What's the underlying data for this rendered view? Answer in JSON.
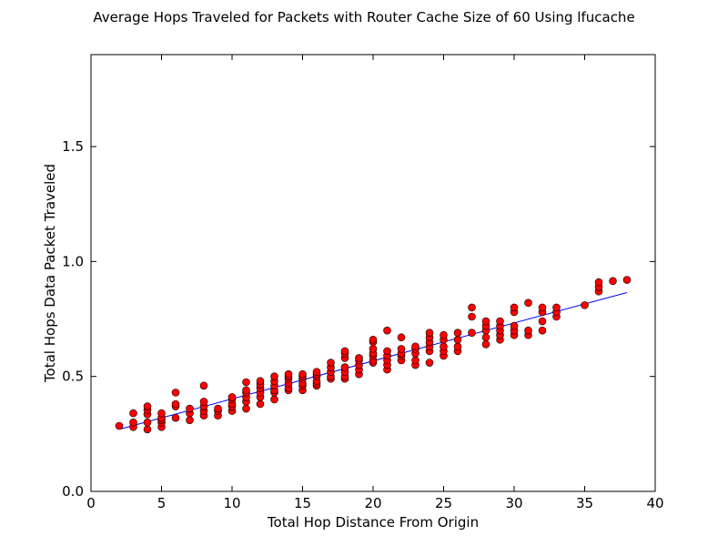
{
  "chart_data": {
    "type": "scatter",
    "title": "Average Hops Traveled for Packets with Router Cache Size of 60 Using lfucache",
    "xlabel": "Total Hop Distance From Origin",
    "ylabel": "Total Hops Data Packet Traveled",
    "xlim": [
      0,
      40
    ],
    "ylim": [
      0.0,
      1.9
    ],
    "xticks": [
      "0",
      "5",
      "10",
      "15",
      "20",
      "25",
      "30",
      "35",
      "40"
    ],
    "yticks": [
      "0.0",
      "0.5",
      "1.0",
      "1.5"
    ],
    "grid": false,
    "colors": {
      "points": "#ff0000",
      "point_edge": "#000000",
      "fit_line": "#0000ff"
    },
    "fit_line": {
      "x": [
        2,
        38
      ],
      "y": [
        0.27,
        0.865
      ]
    },
    "points": {
      "x": [
        2,
        3,
        3,
        3,
        4,
        4,
        4,
        4,
        4,
        5,
        5,
        5,
        5,
        5,
        6,
        6,
        6,
        6,
        7,
        7,
        7,
        8,
        8,
        8,
        8,
        8,
        9,
        9,
        9,
        10,
        10,
        10,
        10,
        10,
        11,
        11,
        11,
        11,
        11,
        11,
        12,
        12,
        12,
        12,
        12,
        12,
        13,
        13,
        13,
        13,
        13,
        13,
        14,
        14,
        14,
        14,
        14,
        14,
        15,
        15,
        15,
        15,
        15,
        15,
        16,
        16,
        16,
        16,
        16,
        16,
        17,
        17,
        17,
        17,
        17,
        18,
        18,
        18,
        18,
        18,
        18,
        18,
        19,
        19,
        19,
        19,
        19,
        20,
        20,
        20,
        20,
        20,
        20,
        20,
        21,
        21,
        21,
        21,
        21,
        21,
        22,
        22,
        22,
        22,
        22,
        23,
        23,
        23,
        23,
        23,
        24,
        24,
        24,
        24,
        24,
        24,
        25,
        25,
        25,
        25,
        25,
        26,
        26,
        26,
        26,
        27,
        27,
        27,
        28,
        28,
        28,
        28,
        28,
        29,
        29,
        29,
        29,
        29,
        30,
        30,
        30,
        30,
        30,
        31,
        31,
        31,
        32,
        32,
        32,
        32,
        33,
        33,
        33,
        35,
        36,
        36,
        36,
        37,
        38
      ],
      "y": [
        0.285,
        0.28,
        0.3,
        0.34,
        0.27,
        0.3,
        0.335,
        0.355,
        0.37,
        0.28,
        0.3,
        0.31,
        0.32,
        0.34,
        0.32,
        0.37,
        0.38,
        0.43,
        0.31,
        0.34,
        0.36,
        0.33,
        0.35,
        0.37,
        0.39,
        0.46,
        0.33,
        0.35,
        0.36,
        0.35,
        0.37,
        0.38,
        0.4,
        0.41,
        0.36,
        0.39,
        0.41,
        0.43,
        0.44,
        0.475,
        0.38,
        0.41,
        0.43,
        0.45,
        0.465,
        0.48,
        0.4,
        0.43,
        0.44,
        0.46,
        0.48,
        0.5,
        0.44,
        0.45,
        0.47,
        0.49,
        0.5,
        0.51,
        0.44,
        0.46,
        0.47,
        0.49,
        0.5,
        0.51,
        0.46,
        0.47,
        0.48,
        0.5,
        0.51,
        0.52,
        0.49,
        0.5,
        0.52,
        0.54,
        0.56,
        0.49,
        0.5,
        0.52,
        0.54,
        0.58,
        0.6,
        0.61,
        0.51,
        0.53,
        0.55,
        0.57,
        0.58,
        0.56,
        0.57,
        0.59,
        0.6,
        0.62,
        0.65,
        0.66,
        0.53,
        0.55,
        0.57,
        0.59,
        0.61,
        0.7,
        0.57,
        0.59,
        0.6,
        0.62,
        0.67,
        0.55,
        0.57,
        0.6,
        0.62,
        0.63,
        0.56,
        0.61,
        0.63,
        0.65,
        0.67,
        0.69,
        0.59,
        0.61,
        0.63,
        0.66,
        0.68,
        0.61,
        0.63,
        0.66,
        0.69,
        0.69,
        0.76,
        0.8,
        0.64,
        0.67,
        0.7,
        0.72,
        0.74,
        0.66,
        0.68,
        0.7,
        0.72,
        0.74,
        0.68,
        0.7,
        0.72,
        0.78,
        0.8,
        0.68,
        0.7,
        0.82,
        0.7,
        0.74,
        0.78,
        0.8,
        0.76,
        0.78,
        0.8,
        0.81,
        0.87,
        0.89,
        0.91,
        0.915,
        0.92
      ]
    }
  }
}
